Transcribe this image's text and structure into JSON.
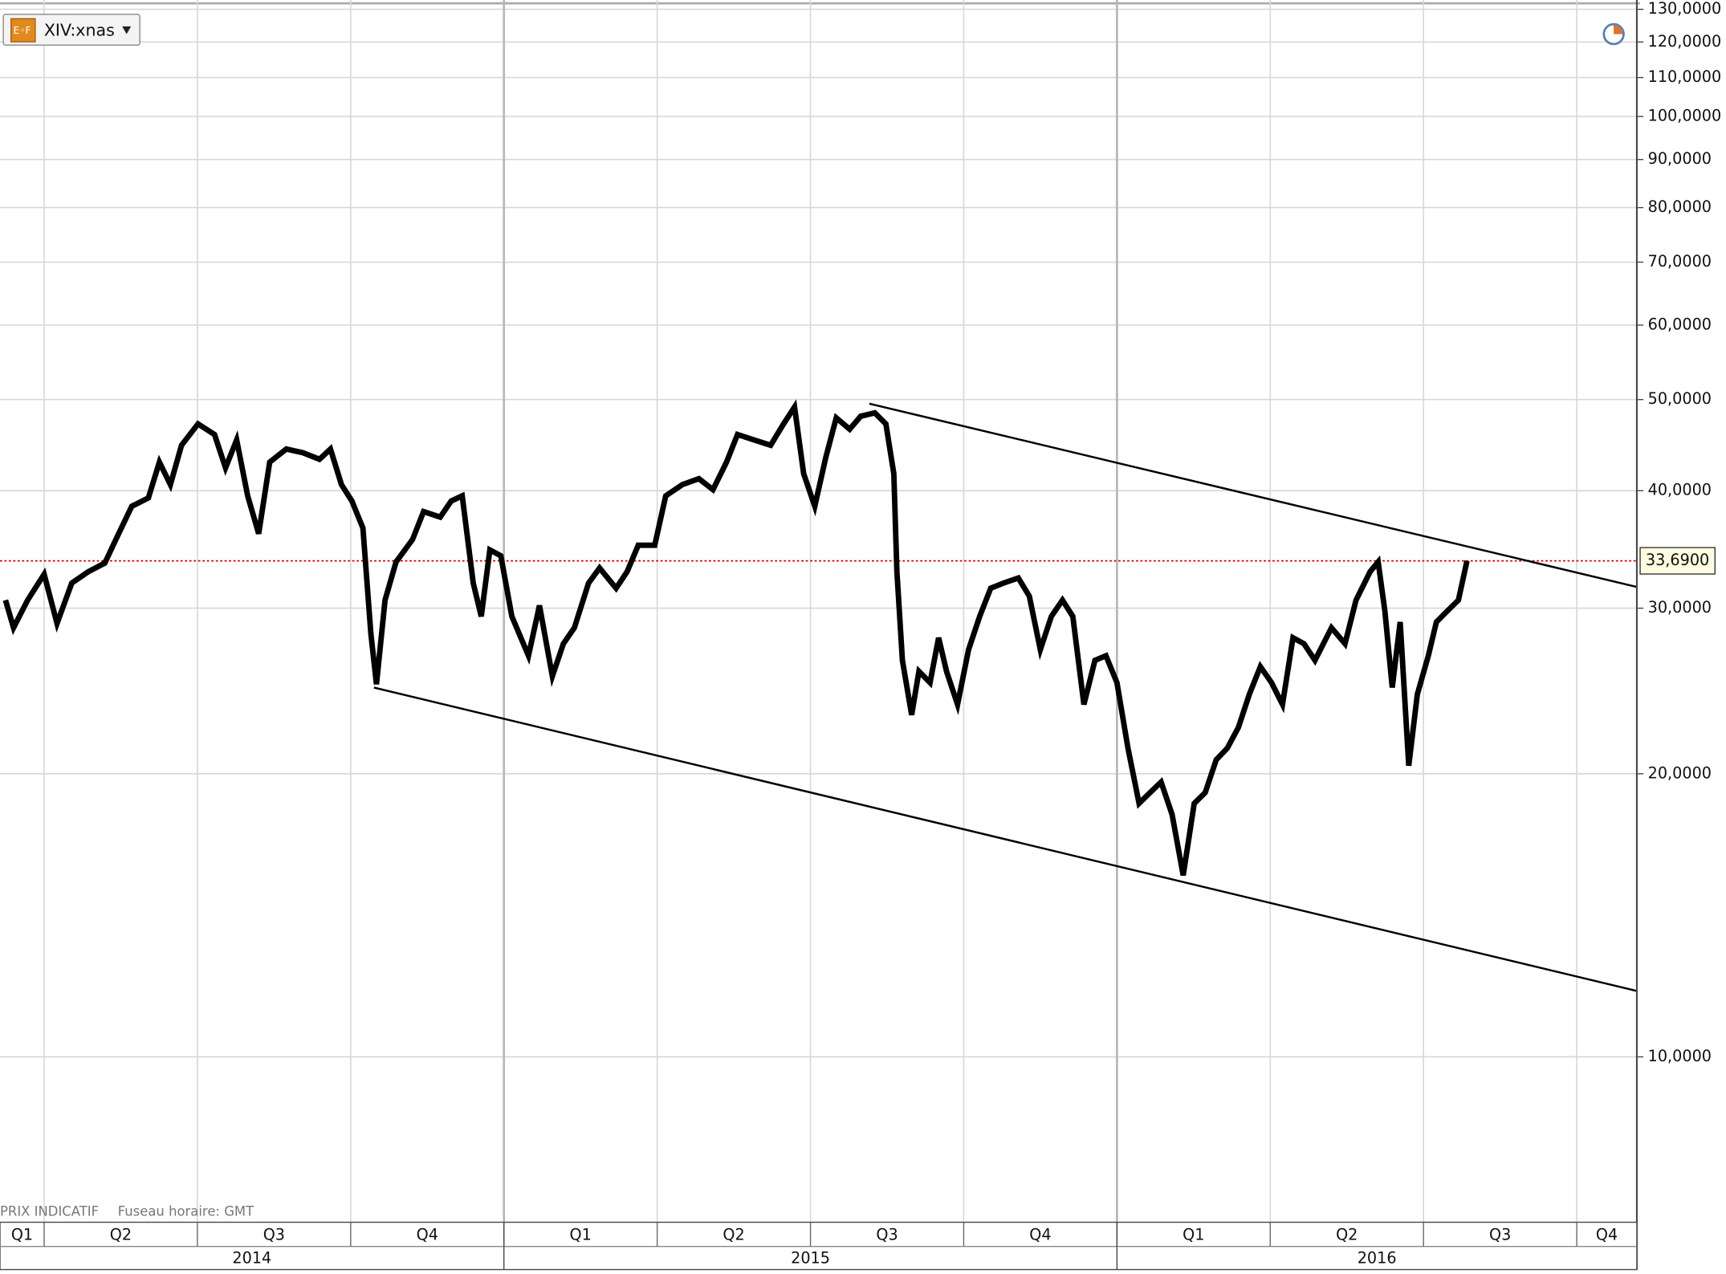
{
  "footer": [
    "PRIX INDICATIF",
    "Fuseau horaire: GMT"
  ],
  "chart_data": {
    "type": "line",
    "log_scale": true,
    "grid": true,
    "xlim": [
      2014.178,
      2016.848
    ],
    "ylim": [
      6.67,
      133
    ],
    "yticks": [
      {
        "value": 10,
        "label": "10,0000"
      },
      {
        "value": 20,
        "label": "20,0000"
      },
      {
        "value": 30,
        "label": "30,0000"
      },
      {
        "value": 40,
        "label": "40,0000"
      },
      {
        "value": 50,
        "label": "50,0000"
      },
      {
        "value": 60,
        "label": "60,0000"
      },
      {
        "value": 70,
        "label": "70,0000"
      },
      {
        "value": 80,
        "label": "80,0000"
      },
      {
        "value": 90,
        "label": "90,0000"
      },
      {
        "value": 100,
        "label": "100,0000"
      },
      {
        "value": 110,
        "label": "110,0000"
      },
      {
        "value": 120,
        "label": "120,0000"
      },
      {
        "value": 130,
        "label": "130,0000"
      }
    ],
    "xticks": [
      {
        "value": 2014.0,
        "label": "Q1"
      },
      {
        "value": 2014.25,
        "label": "Q2"
      },
      {
        "value": 2014.5,
        "label": "Q3"
      },
      {
        "value": 2014.75,
        "label": "Q4"
      },
      {
        "value": 2015.0,
        "label": "Q1"
      },
      {
        "value": 2015.25,
        "label": "Q2"
      },
      {
        "value": 2015.5,
        "label": "Q3"
      },
      {
        "value": 2015.75,
        "label": "Q4"
      },
      {
        "value": 2016.0,
        "label": "Q1"
      },
      {
        "value": 2016.25,
        "label": "Q2"
      },
      {
        "value": 2016.5,
        "label": "Q3"
      },
      {
        "value": 2016.75,
        "label": "Q4"
      }
    ],
    "year_ticks": [
      2014,
      2015,
      2016
    ],
    "x": [
      2014.187,
      2014.2,
      2014.223,
      2014.25,
      2014.271,
      2014.295,
      2014.322,
      2014.349,
      2014.367,
      2014.393,
      2014.42,
      2014.438,
      2014.456,
      2014.474,
      2014.501,
      2014.528,
      2014.546,
      2014.564,
      2014.582,
      2014.6,
      2014.618,
      2014.645,
      2014.672,
      2014.699,
      2014.717,
      2014.735,
      2014.752,
      2014.77,
      2014.783,
      2014.792,
      2014.806,
      2014.824,
      2014.851,
      2014.869,
      2014.896,
      2014.914,
      2014.932,
      2014.95,
      2014.963,
      2014.977,
      2014.995,
      2015.013,
      2015.04,
      2015.058,
      2015.079,
      2015.097,
      2015.115,
      2015.138,
      2015.156,
      2015.183,
      2015.201,
      2015.219,
      2015.246,
      2015.264,
      2015.291,
      2015.318,
      2015.341,
      2015.363,
      2015.381,
      2015.408,
      2015.435,
      2015.456,
      2015.474,
      2015.489,
      2015.507,
      2015.525,
      2015.542,
      2015.564,
      2015.582,
      2015.605,
      2015.623,
      2015.636,
      2015.641,
      2015.65,
      2015.665,
      2015.677,
      2015.695,
      2015.709,
      2015.722,
      2015.74,
      2015.758,
      2015.776,
      2015.794,
      2015.815,
      2015.839,
      2015.857,
      2015.875,
      2015.893,
      2015.911,
      2015.928,
      2015.946,
      2015.964,
      2015.982,
      2016.0,
      2016.018,
      2016.036,
      2016.054,
      2016.072,
      2016.09,
      2016.108,
      2016.126,
      2016.144,
      2016.162,
      2016.18,
      2016.198,
      2016.216,
      2016.234,
      2016.252,
      2016.27,
      2016.287,
      2016.305,
      2016.323,
      2016.35,
      2016.372,
      2016.39,
      2016.413,
      2016.426,
      2016.437,
      2016.449,
      2016.462,
      2016.476,
      2016.49,
      2016.508,
      2016.521,
      2016.539,
      2016.557,
      2016.571
    ],
    "series": [
      {
        "name": "XIV:xnas",
        "color": "#000000",
        "values": [
          30.6,
          28.6,
          30.6,
          32.6,
          28.9,
          31.9,
          32.8,
          33.5,
          35.5,
          38.5,
          39.3,
          42.9,
          40.6,
          44.7,
          47.1,
          45.9,
          42.3,
          45.3,
          39.5,
          36.0,
          42.9,
          44.3,
          43.9,
          43.2,
          44.3,
          40.6,
          39.0,
          36.5,
          28.2,
          24.9,
          30.6,
          33.6,
          35.5,
          38.0,
          37.5,
          39.0,
          39.5,
          31.9,
          29.4,
          34.6,
          34.1,
          29.4,
          26.7,
          30.2,
          25.4,
          27.5,
          28.6,
          31.9,
          33.1,
          31.5,
          32.8,
          35.0,
          35.0,
          39.5,
          40.6,
          41.2,
          40.1,
          42.9,
          45.9,
          45.3,
          44.7,
          47.1,
          49.1,
          41.7,
          38.5,
          43.4,
          47.8,
          46.5,
          48.0,
          48.4,
          47.1,
          41.7,
          32.8,
          26.4,
          23.1,
          25.7,
          25.0,
          27.9,
          25.7,
          23.7,
          27.1,
          29.4,
          31.5,
          31.9,
          32.3,
          30.9,
          27.1,
          29.4,
          30.6,
          29.4,
          23.7,
          26.4,
          26.7,
          25.0,
          21.3,
          18.6,
          19.1,
          19.6,
          18.1,
          15.6,
          18.6,
          19.1,
          20.7,
          21.3,
          22.4,
          24.3,
          26.0,
          25.0,
          23.7,
          27.9,
          27.5,
          26.4,
          28.6,
          27.5,
          30.6,
          32.8,
          33.6,
          29.8,
          24.7,
          29.0,
          20.4,
          24.3,
          26.7,
          29.0,
          29.8,
          30.6,
          33.69
        ]
      }
    ],
    "last_price": {
      "value": 33.69,
      "label": "33,6900",
      "color": "#cc0000"
    },
    "trendlines": [
      {
        "x": [
          2014.788,
          2016.848
        ],
        "y": [
          24.7,
          11.75
        ]
      },
      {
        "x": [
          2015.596,
          2016.848
        ],
        "y": [
          49.5,
          31.6
        ]
      }
    ]
  }
}
